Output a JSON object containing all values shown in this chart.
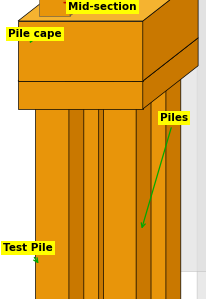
{
  "background_color": "#ffffff",
  "labels": {
    "mid_section": "Mid-section",
    "pile_cape": "Pile cape",
    "piles": "Piles",
    "test_pile": "Test Pile"
  },
  "label_bg": "#ffff00",
  "label_text_color": "#000000",
  "label_fontsize": 7.5,
  "label_fontweight": "bold",
  "orange_top": "#f5b330",
  "orange_front": "#e8950a",
  "orange_right": "#c97800",
  "orange_edge": "#b06500",
  "arrow_color": "#00aa00",
  "sym_plane_color": "#e0e0e0",
  "axis_x": "#cc0000",
  "axis_y": "#3333cc",
  "axis_z": "#00aa00"
}
